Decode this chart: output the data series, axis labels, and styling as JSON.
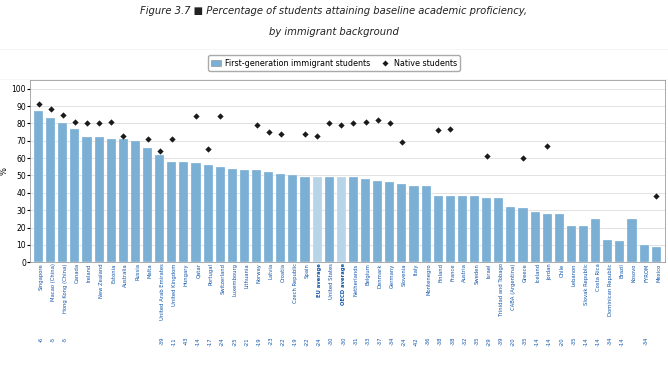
{
  "title_line1": "Figure 3.7 ■ Percentage of students attaining baseline academic proficiency,",
  "title_line2": "by immigrant background",
  "ylabel": "%",
  "legend_bar": "First-generation immigrant students",
  "legend_diamond": "Native students",
  "categories": [
    "Singapore\n-6",
    "Macao (China)\n-5",
    "Hong Kong (China)\n-5",
    "Canada",
    "Ireland",
    "New Zealand",
    "Estonia",
    "Australia",
    "Russia",
    "Malta",
    "United Arab Emirates\n-39",
    "United Kingdom\n-11",
    "Hungary\n-43",
    "Qatar\n-14",
    "Portugal\n-17",
    "Switzerland\n-24",
    "Luxembourg\n-25",
    "Lithuania\n-21",
    "Norway\n-19",
    "Latvia\n-23",
    "Croatia\n-22",
    "Czech Republic\n-19",
    "Spain\n-22",
    "EU average\n-24",
    "United States\n-30",
    "OECD average\n-30",
    "Netherlands\n-31",
    "Belgium\n-33",
    "Denmark\n-37",
    "Germany\n-34",
    "Slovenia\n-24",
    "Italy\n-42",
    "Montenegro\n-36",
    "Finland\n-38",
    "France\n-38",
    "Austria\n-32",
    "Sweden\n-35",
    "Israel\n-29",
    "Trinidad and Tobago\n-39",
    "CABA (Argentina)\n-20",
    "Greece\n-35",
    "Iceland\n-14",
    "Jordan\n-14",
    "Chile\n-20",
    "Lebanon\n-35",
    "Slovak Republic\n-14",
    "Costa Rica\n-14",
    "Dominican Republic\n-34",
    "Brazil\n-14",
    "Kosovo",
    "FYROM\n-34",
    "Mexico"
  ],
  "bar_values": [
    87,
    83,
    80,
    77,
    72,
    72,
    71,
    71,
    70,
    66,
    62,
    58,
    58,
    57,
    56,
    55,
    54,
    53,
    53,
    52,
    51,
    50,
    49,
    49,
    49,
    49,
    49,
    48,
    47,
    46,
    45,
    44,
    44,
    38,
    38,
    38,
    38,
    37,
    37,
    32,
    31,
    29,
    28,
    28,
    21,
    21,
    25,
    13,
    12,
    25,
    10,
    9
  ],
  "diamond_values": [
    91,
    88,
    85,
    81,
    80,
    80,
    81,
    73,
    null,
    71,
    64,
    71,
    null,
    84,
    65,
    84,
    null,
    null,
    79,
    75,
    74,
    null,
    74,
    73,
    80,
    79,
    80,
    81,
    82,
    80,
    69,
    null,
    null,
    76,
    77,
    null,
    null,
    61,
    null,
    null,
    60,
    null,
    67,
    null,
    null,
    null,
    null,
    null,
    null,
    null,
    null,
    38
  ],
  "bar_color": "#7BAFD4",
  "bar_color_highlight": "#B8D4E8",
  "diamond_color": "#1a1a1a",
  "highlight_indices": [
    23,
    25
  ],
  "background_color": "#ffffff",
  "ylim": [
    0,
    105
  ],
  "yticks": [
    0,
    10,
    20,
    30,
    40,
    50,
    60,
    70,
    80,
    90,
    100
  ]
}
